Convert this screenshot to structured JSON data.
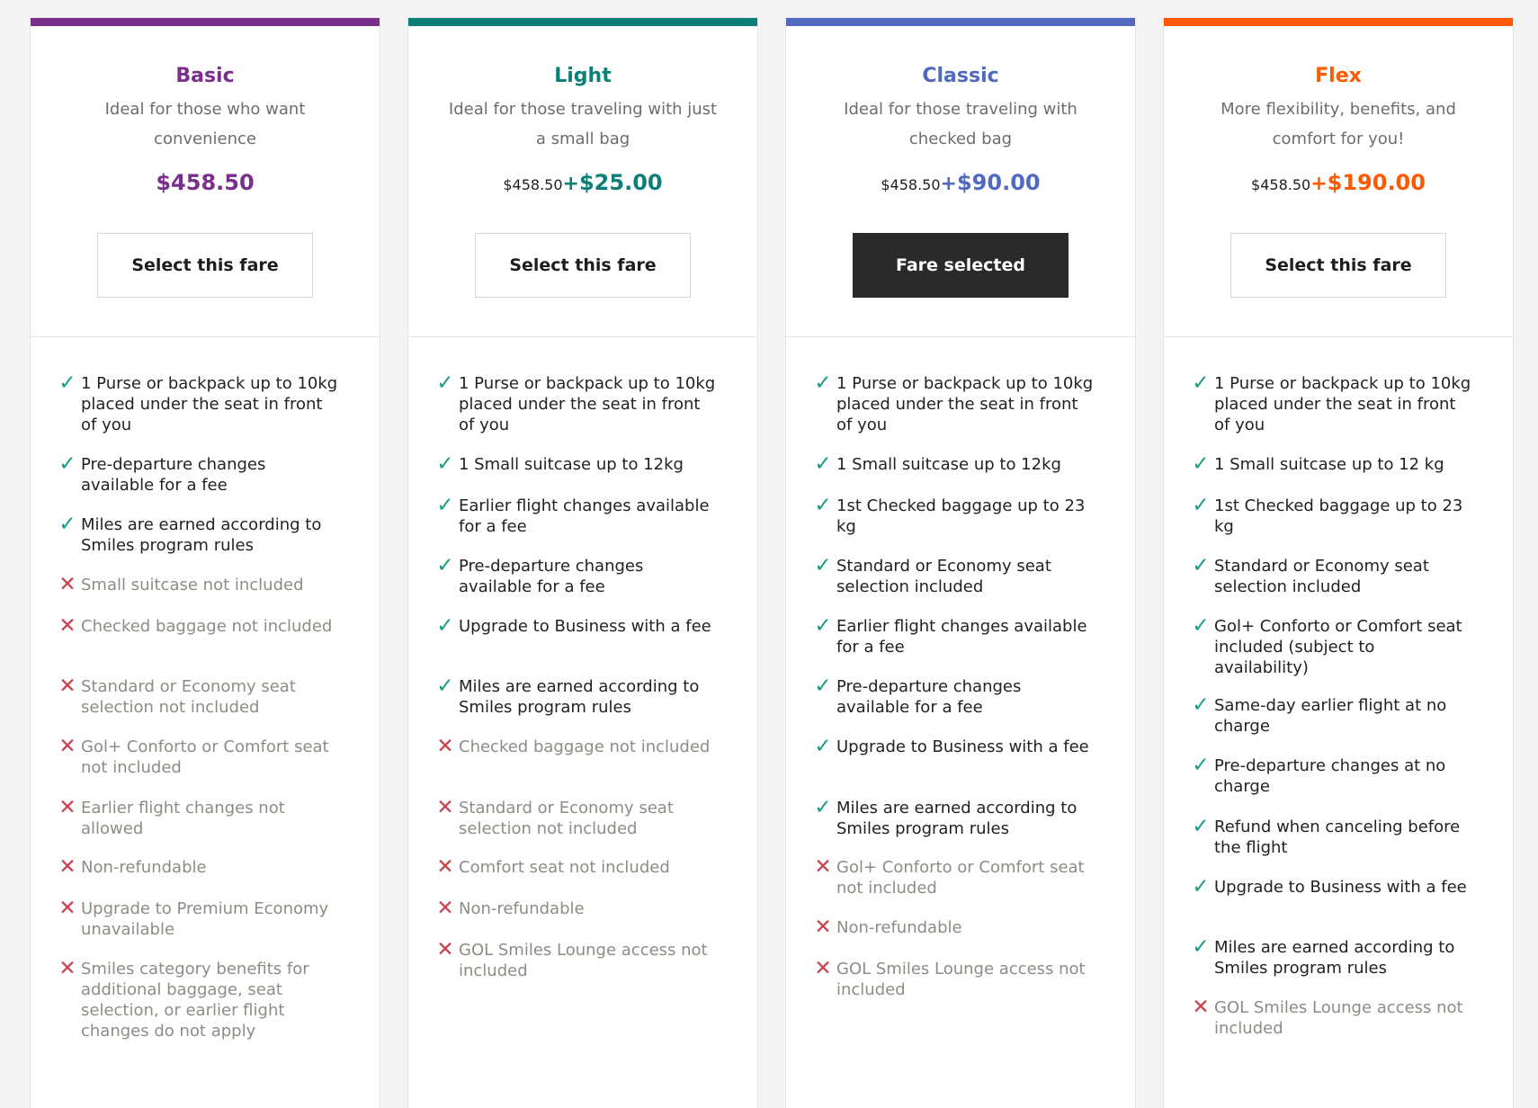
{
  "fares": [
    {
      "id": "basic",
      "name": "Basic",
      "accent_color": "#7a2f8c",
      "description": "Ideal for those who want convenience",
      "base_price": "",
      "plus": "",
      "price": "$458.50",
      "button_label": "Select this fare",
      "selected": false,
      "features": [
        {
          "text": "1 Purse or backpack up to 10kg placed under the seat in front of you",
          "included": true
        },
        {
          "text": "Pre-departure changes available for a fee",
          "included": true
        },
        {
          "text": "Miles are earned according to Smiles program rules",
          "included": true
        },
        {
          "text": "Small suitcase not included",
          "included": false
        },
        {
          "text": "Checked baggage not included",
          "included": false
        },
        {
          "text": "Standard or Economy seat selection not included",
          "included": false
        },
        {
          "text": "Gol+ Conforto or Comfort seat not included",
          "included": false
        },
        {
          "text": "Earlier flight changes not allowed",
          "included": false
        },
        {
          "text": "Non-refundable",
          "included": false
        },
        {
          "text": "Upgrade to Premium Economy unavailable",
          "included": false
        },
        {
          "text": "Smiles category benefits for additional baggage, seat selection, or earlier flight changes do not apply",
          "included": false
        }
      ]
    },
    {
      "id": "light",
      "name": "Light",
      "accent_color": "#0b7f78",
      "description": "Ideal for those traveling with just a small bag",
      "base_price": "$458.50",
      "plus": "+",
      "price": "$25.00",
      "button_label": "Select this fare",
      "selected": false,
      "features": [
        {
          "text": "1 Purse or backpack up to 10kg placed under the seat in front of you",
          "included": true
        },
        {
          "text": "1 Small suitcase up to 12kg",
          "included": true
        },
        {
          "text": "Earlier flight changes available for a fee",
          "included": true
        },
        {
          "text": "Pre-departure changes available for a fee",
          "included": true
        },
        {
          "text": "Upgrade to Business with a fee",
          "included": true
        },
        {
          "text": "Miles are earned according to Smiles program rules",
          "included": true
        },
        {
          "text": "Checked baggage not included",
          "included": false
        },
        {
          "text": "Standard or Economy seat selection not included",
          "included": false
        },
        {
          "text": "Comfort seat not included",
          "included": false
        },
        {
          "text": "Non-refundable",
          "included": false
        },
        {
          "text": "GOL Smiles Lounge access not included",
          "included": false
        }
      ]
    },
    {
      "id": "classic",
      "name": "Classic",
      "accent_color": "#4f6ac0",
      "description": "Ideal for those traveling with checked bag",
      "base_price": "$458.50",
      "plus": "+",
      "price": "$90.00",
      "button_label": "Fare selected",
      "selected": true,
      "features": [
        {
          "text": "1 Purse or backpack up to 10kg placed under the seat in front of you",
          "included": true
        },
        {
          "text": "1 Small suitcase up to 12kg",
          "included": true
        },
        {
          "text": "1st Checked baggage up to 23 kg",
          "included": true
        },
        {
          "text": "Standard or Economy seat selection included",
          "included": true
        },
        {
          "text": "Earlier flight changes available for a fee",
          "included": true
        },
        {
          "text": "Pre-departure changes available for a fee",
          "included": true
        },
        {
          "text": "Upgrade to Business with a fee",
          "included": true
        },
        {
          "text": "Miles are earned according to Smiles program rules",
          "included": true
        },
        {
          "text": "Gol+ Conforto or Comfort seat not included",
          "included": false
        },
        {
          "text": "Non-refundable",
          "included": false
        },
        {
          "text": "GOL Smiles Lounge access not included",
          "included": false
        }
      ]
    },
    {
      "id": "flex",
      "name": "Flex",
      "accent_color": "#ff5a00",
      "description": "More flexibility, benefits, and comfort for you!",
      "base_price": "$458.50",
      "plus": "+",
      "price": "$190.00",
      "button_label": "Select this fare",
      "selected": false,
      "features": [
        {
          "text": "1 Purse or backpack up to 10kg placed under the seat in front of you",
          "included": true
        },
        {
          "text": "1 Small suitcase up to 12 kg",
          "included": true
        },
        {
          "text": "1st Checked baggage up to 23 kg",
          "included": true
        },
        {
          "text": "Standard or Economy seat selection included",
          "included": true
        },
        {
          "text": "Gol+ Conforto or Comfort seat included (subject to availability)",
          "included": true
        },
        {
          "text": "Same-day earlier flight at no charge",
          "included": true
        },
        {
          "text": "Pre-departure changes at no charge",
          "included": true
        },
        {
          "text": "Refund when canceling before the flight",
          "included": true
        },
        {
          "text": "Upgrade to Business with a fee",
          "included": true
        },
        {
          "text": "Miles are earned according to Smiles program rules",
          "included": true
        },
        {
          "text": "GOL Smiles Lounge access not included",
          "included": false
        }
      ]
    }
  ],
  "icons": {
    "included": "check-icon",
    "excluded": "cross-icon"
  }
}
